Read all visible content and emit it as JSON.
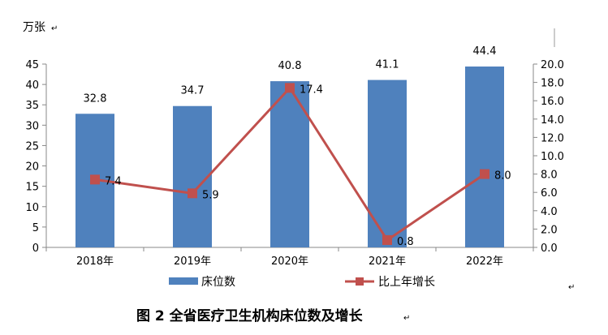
{
  "chart_data": {
    "type": "bar",
    "title": "",
    "caption": "图 2  全省医疗卫生机构床位数及增长",
    "y_unit": "万张",
    "categories": [
      "2018年",
      "2019年",
      "2020年",
      "2021年",
      "2022年"
    ],
    "series": [
      {
        "name": "床位数",
        "type": "bar",
        "axis": "left",
        "color": "#4F81BD",
        "values": [
          32.8,
          34.7,
          40.8,
          41.1,
          44.4
        ],
        "labels": [
          "32.8",
          "34.7",
          "40.8",
          "41.1",
          "44.4"
        ]
      },
      {
        "name": "比上年增长",
        "type": "line",
        "axis": "right",
        "color": "#C0504D",
        "values": [
          7.4,
          5.9,
          17.4,
          0.8,
          8.0
        ],
        "labels": [
          "7.4",
          "5.9",
          "17.4",
          "0.8",
          "8.0"
        ]
      }
    ],
    "y_left": {
      "range": [
        0,
        45
      ],
      "ticks": [
        "0",
        "5",
        "10",
        "15",
        "20",
        "25",
        "30",
        "35",
        "40",
        "45"
      ]
    },
    "y_right": {
      "range": [
        0,
        20
      ],
      "ticks": [
        "0.0",
        "2.0",
        "4.0",
        "6.0",
        "8.0",
        "10.0",
        "12.0",
        "14.0",
        "16.0",
        "18.0",
        "20.0"
      ]
    },
    "grid": false,
    "legend_position": "bottom"
  }
}
